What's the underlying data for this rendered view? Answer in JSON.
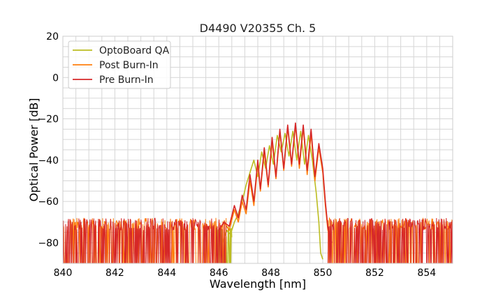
{
  "chart_data": {
    "type": "line",
    "title": "D4490 V20355 Ch. 5",
    "xlabel": "Wavelength [nm]",
    "ylabel": "Optical Power [dB]",
    "xlim": [
      840,
      855
    ],
    "ylim": [
      -90,
      20
    ],
    "xticks": [
      840,
      842,
      844,
      846,
      848,
      850,
      852,
      854
    ],
    "yticks": [
      20,
      0,
      -20,
      -40,
      -60,
      -80
    ],
    "xtick_labels": [
      "840",
      "842",
      "844",
      "846",
      "848",
      "850",
      "852",
      "854"
    ],
    "ytick_labels": [
      "20",
      "0",
      "−20",
      "−40",
      "−60",
      "−80"
    ],
    "grid": true,
    "legend_position": "top-left",
    "series": [
      {
        "name": "OptoBoard QA",
        "color": "#bcbd22",
        "noise_floor_range": [
          845.9,
          846.5
        ],
        "x": [
          845.9,
          846.0,
          846.15,
          846.3,
          846.45,
          846.6,
          846.75,
          846.9,
          847.05,
          847.2,
          847.35,
          847.5,
          847.65,
          847.8,
          847.95,
          848.1,
          848.25,
          848.4,
          848.55,
          848.7,
          848.85,
          849.0,
          849.15,
          849.3,
          849.45,
          849.6,
          849.75,
          849.85,
          849.92,
          850.0
        ],
        "y": [
          -84,
          -78,
          -80,
          -74,
          -76,
          -70,
          -66,
          -60,
          -52,
          -46,
          -40,
          -48,
          -36,
          -44,
          -33,
          -42,
          -28,
          -36,
          -27,
          -38,
          -26,
          -40,
          -26,
          -42,
          -28,
          -40,
          -56,
          -70,
          -85,
          -88
        ]
      },
      {
        "name": "Post Burn-In",
        "color": "#ff7f0e",
        "x": [
          846.0,
          846.2,
          846.4,
          846.6,
          846.75,
          846.9,
          847.05,
          847.2,
          847.35,
          847.5,
          847.6,
          847.75,
          847.9,
          848.05,
          848.2,
          848.35,
          848.5,
          848.65,
          848.8,
          848.95,
          849.1,
          849.25,
          849.4,
          849.55,
          849.7,
          849.85,
          850.0,
          850.1,
          850.2,
          850.35
        ],
        "y": [
          -76,
          -70,
          -74,
          -64,
          -70,
          -60,
          -66,
          -50,
          -62,
          -42,
          -55,
          -36,
          -53,
          -31,
          -49,
          -26,
          -45,
          -24,
          -43,
          -23,
          -44,
          -24,
          -47,
          -27,
          -50,
          -34,
          -46,
          -62,
          -74,
          -80
        ]
      },
      {
        "name": "Pre Burn-In",
        "color": "#d62728",
        "x": [
          846.0,
          846.2,
          846.4,
          846.6,
          846.75,
          846.9,
          847.05,
          847.2,
          847.35,
          847.5,
          847.6,
          847.75,
          847.9,
          848.05,
          848.2,
          848.35,
          848.5,
          848.65,
          848.8,
          848.95,
          849.1,
          849.25,
          849.4,
          849.55,
          849.7,
          849.85,
          850.0,
          850.1,
          850.2,
          850.35
        ],
        "y": [
          -74,
          -70,
          -72,
          -62,
          -68,
          -57,
          -64,
          -47,
          -60,
          -40,
          -54,
          -34,
          -52,
          -29,
          -48,
          -25,
          -44,
          -23,
          -42,
          -22,
          -42,
          -23,
          -45,
          -25,
          -48,
          -32,
          -44,
          -60,
          -73,
          -80
        ]
      }
    ],
    "noise_floor": {
      "level_dB": [
        -74,
        -90
      ],
      "left_range": [
        840,
        846.3
      ],
      "right_range": [
        850.2,
        855
      ]
    }
  }
}
